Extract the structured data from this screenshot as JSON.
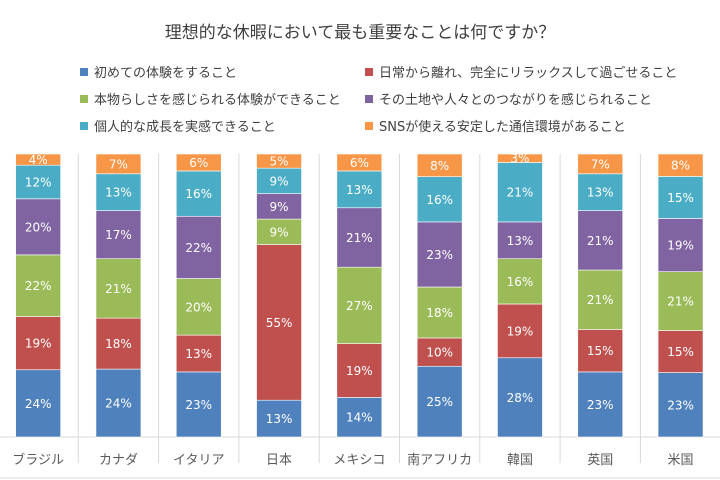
{
  "chart_data": {
    "type": "bar",
    "stacked": "percent",
    "title": "理想的な休暇において最も重要なことは何ですか？",
    "categories": [
      "ブラジル",
      "カナダ",
      "イタリア",
      "日本",
      "メキシコ",
      "南アフリカ",
      "韓国",
      "英国",
      "米国"
    ],
    "series": [
      {
        "name": "初めての体験をすること",
        "color": "#4F81BD",
        "values": [
          24,
          24,
          23,
          13,
          14,
          25,
          28,
          23,
          23
        ]
      },
      {
        "name": "日常から離れ、完全にリラックスして過ごせること",
        "color": "#C0504D",
        "values": [
          19,
          18,
          13,
          55,
          19,
          10,
          19,
          15,
          15
        ]
      },
      {
        "name": "本物らしさを感じられる体験ができること",
        "color": "#9BBB59",
        "values": [
          22,
          21,
          20,
          9,
          27,
          18,
          16,
          21,
          21
        ]
      },
      {
        "name": "その土地や人々とのつながりを感じられること",
        "color": "#8064A2",
        "values": [
          20,
          17,
          22,
          9,
          21,
          23,
          13,
          21,
          19
        ]
      },
      {
        "name": "個人的な成長を実感できること",
        "color": "#4BACC6",
        "values": [
          12,
          13,
          16,
          9,
          13,
          16,
          21,
          13,
          15
        ]
      },
      {
        "name": "SNSが使える安定した通信環境があること",
        "color": "#F79646",
        "values": [
          4,
          7,
          6,
          5,
          6,
          8,
          3,
          7,
          8
        ]
      }
    ],
    "data_label_suffix": "%",
    "legend_position": "top",
    "grid": false
  }
}
